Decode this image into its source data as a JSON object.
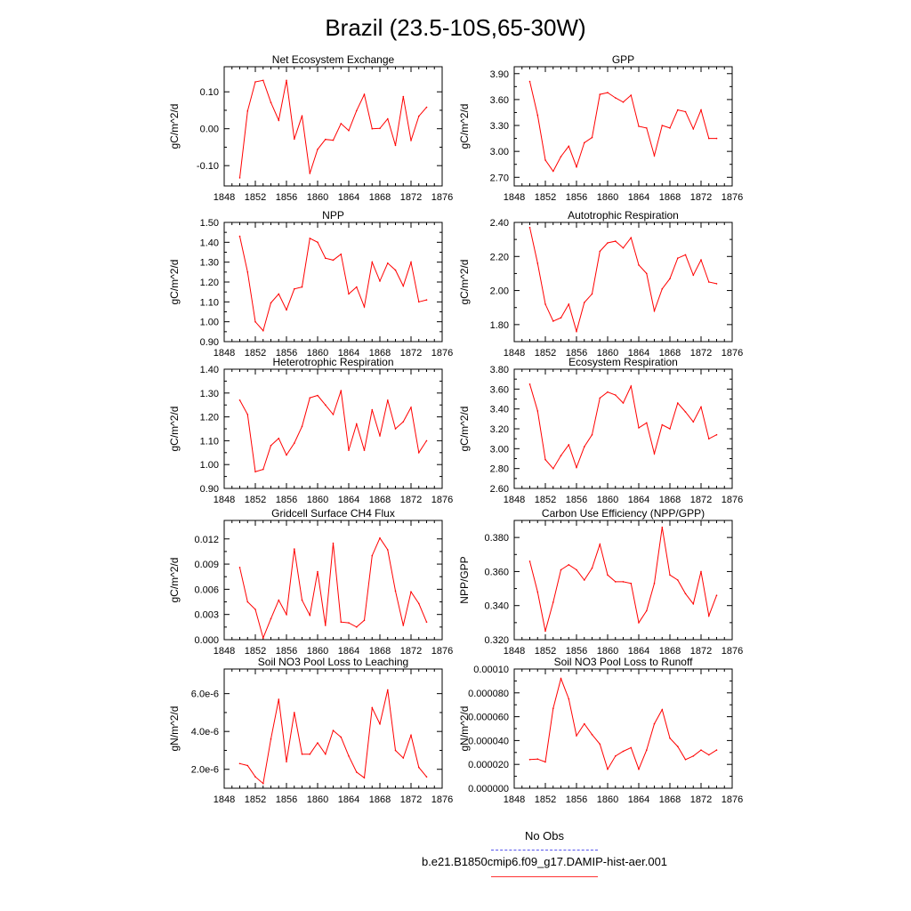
{
  "title": "Brazil (23.5-10S,65-30W)",
  "legend": {
    "obs_label": "No Obs",
    "obs_color": "#5555ee",
    "run_label": "b.e21.B1850cmip6.f09_g17.DAMIP-hist-aer.001",
    "run_color": "#ff0000"
  },
  "chart_data": [
    {
      "type": "line",
      "title": "Net Ecosystem Exchange",
      "ylabel": "gC/m^2/d",
      "xlim": [
        1848,
        1876
      ],
      "xticks": [
        1848,
        1852,
        1856,
        1860,
        1864,
        1868,
        1872,
        1876
      ],
      "xtick_labels": [
        "1848",
        "1852",
        "1856",
        "1860",
        "1864",
        "1868",
        "1872",
        "1876"
      ],
      "ylim": [
        -0.155,
        0.168
      ],
      "yticks": [
        -0.1,
        0.0,
        0.1
      ],
      "ytick_labels": [
        "-0.10",
        "0.00",
        "0.10"
      ],
      "x": [
        1850,
        1851,
        1852,
        1853,
        1854,
        1855,
        1856,
        1857,
        1858,
        1859,
        1860,
        1861,
        1862,
        1863,
        1864,
        1865,
        1866,
        1867,
        1868,
        1869,
        1870,
        1871,
        1872,
        1873,
        1874
      ],
      "series": [
        {
          "values": [
            -0.133,
            0.048,
            0.127,
            0.131,
            0.071,
            0.023,
            0.131,
            -0.028,
            0.035,
            -0.121,
            -0.056,
            -0.029,
            -0.031,
            0.014,
            -0.005,
            0.049,
            0.093,
            0.0,
            0.001,
            0.027,
            -0.045,
            0.087,
            -0.032,
            0.034,
            0.058
          ]
        }
      ]
    },
    {
      "type": "line",
      "title": "GPP",
      "ylabel": "gC/m^2/d",
      "xlim": [
        1848,
        1876
      ],
      "xticks": [
        1848,
        1852,
        1856,
        1860,
        1864,
        1868,
        1872,
        1876
      ],
      "xtick_labels": [
        "1848",
        "1852",
        "1856",
        "1860",
        "1864",
        "1868",
        "1872",
        "1876"
      ],
      "ylim": [
        2.6,
        3.98
      ],
      "yticks": [
        2.7,
        3.0,
        3.3,
        3.6,
        3.9
      ],
      "ytick_labels": [
        "2.70",
        "3.00",
        "3.30",
        "3.60",
        "3.90"
      ],
      "x": [
        1850,
        1851,
        1852,
        1853,
        1854,
        1855,
        1856,
        1857,
        1858,
        1859,
        1860,
        1861,
        1862,
        1863,
        1864,
        1865,
        1866,
        1867,
        1868,
        1869,
        1870,
        1871,
        1872,
        1873,
        1874
      ],
      "series": [
        {
          "values": [
            3.81,
            3.42,
            2.9,
            2.77,
            2.94,
            3.06,
            2.82,
            3.1,
            3.16,
            3.66,
            3.68,
            3.62,
            3.57,
            3.65,
            3.29,
            3.27,
            2.95,
            3.3,
            3.27,
            3.48,
            3.46,
            3.26,
            3.48,
            3.15,
            3.15
          ]
        }
      ]
    },
    {
      "type": "line",
      "title": "NPP",
      "ylabel": "gC/m^2/d",
      "xlim": [
        1848,
        1876
      ],
      "xticks": [
        1848,
        1852,
        1856,
        1860,
        1864,
        1868,
        1872,
        1876
      ],
      "xtick_labels": [
        "1848",
        "1852",
        "1856",
        "1860",
        "1864",
        "1868",
        "1872",
        "1876"
      ],
      "ylim": [
        0.9,
        1.5
      ],
      "yticks": [
        0.9,
        1.0,
        1.1,
        1.2,
        1.3,
        1.4,
        1.5
      ],
      "ytick_labels": [
        "0.90",
        "1.00",
        "1.10",
        "1.20",
        "1.30",
        "1.40",
        "1.50"
      ],
      "x": [
        1850,
        1851,
        1852,
        1853,
        1854,
        1855,
        1856,
        1857,
        1858,
        1859,
        1860,
        1861,
        1862,
        1863,
        1864,
        1865,
        1866,
        1867,
        1868,
        1869,
        1870,
        1871,
        1872,
        1873,
        1874
      ],
      "series": [
        {
          "values": [
            1.43,
            1.25,
            1.0,
            0.955,
            1.095,
            1.14,
            1.06,
            1.165,
            1.175,
            1.42,
            1.4,
            1.32,
            1.31,
            1.34,
            1.14,
            1.175,
            1.075,
            1.3,
            1.205,
            1.295,
            1.26,
            1.18,
            1.3,
            1.1,
            1.11
          ]
        }
      ]
    },
    {
      "type": "line",
      "title": "Autotrophic Respiration",
      "ylabel": "gC/m^2/d",
      "xlim": [
        1848,
        1876
      ],
      "xticks": [
        1848,
        1852,
        1856,
        1860,
        1864,
        1868,
        1872,
        1876
      ],
      "xtick_labels": [
        "1848",
        "1852",
        "1856",
        "1860",
        "1864",
        "1868",
        "1872",
        "1876"
      ],
      "ylim": [
        1.7,
        2.4
      ],
      "yticks": [
        1.8,
        2.0,
        2.2,
        2.4
      ],
      "ytick_labels": [
        "1.80",
        "2.00",
        "2.20",
        "2.40"
      ],
      "x": [
        1850,
        1851,
        1852,
        1853,
        1854,
        1855,
        1856,
        1857,
        1858,
        1859,
        1860,
        1861,
        1862,
        1863,
        1864,
        1865,
        1866,
        1867,
        1868,
        1869,
        1870,
        1871,
        1872,
        1873,
        1874
      ],
      "series": [
        {
          "values": [
            2.37,
            2.16,
            1.92,
            1.82,
            1.84,
            1.92,
            1.76,
            1.93,
            1.98,
            2.23,
            2.28,
            2.29,
            2.25,
            2.31,
            2.15,
            2.1,
            1.88,
            2.01,
            2.07,
            2.19,
            2.21,
            2.09,
            2.18,
            2.05,
            2.04
          ]
        }
      ]
    },
    {
      "type": "line",
      "title": "Heterotrophic Respiration",
      "ylabel": "gC/m^2/d",
      "xlim": [
        1848,
        1876
      ],
      "xticks": [
        1848,
        1852,
        1856,
        1860,
        1864,
        1868,
        1872,
        1876
      ],
      "xtick_labels": [
        "1848",
        "1852",
        "1856",
        "1860",
        "1864",
        "1868",
        "1872",
        "1876"
      ],
      "ylim": [
        0.9,
        1.4
      ],
      "yticks": [
        0.9,
        1.0,
        1.1,
        1.2,
        1.3,
        1.4
      ],
      "ytick_labels": [
        "0.90",
        "1.00",
        "1.10",
        "1.20",
        "1.30",
        "1.40"
      ],
      "x": [
        1850,
        1851,
        1852,
        1853,
        1854,
        1855,
        1856,
        1857,
        1858,
        1859,
        1860,
        1861,
        1862,
        1863,
        1864,
        1865,
        1866,
        1867,
        1868,
        1869,
        1870,
        1871,
        1872,
        1873,
        1874
      ],
      "series": [
        {
          "values": [
            1.27,
            1.21,
            0.97,
            0.98,
            1.08,
            1.11,
            1.04,
            1.09,
            1.16,
            1.28,
            1.29,
            1.25,
            1.21,
            1.31,
            1.06,
            1.17,
            1.06,
            1.23,
            1.12,
            1.27,
            1.15,
            1.18,
            1.24,
            1.05,
            1.1
          ]
        }
      ]
    },
    {
      "type": "line",
      "title": "Ecosystem Respiration",
      "ylabel": "gC/m^2/d",
      "xlim": [
        1848,
        1876
      ],
      "xticks": [
        1848,
        1852,
        1856,
        1860,
        1864,
        1868,
        1872,
        1876
      ],
      "xtick_labels": [
        "1848",
        "1852",
        "1856",
        "1860",
        "1864",
        "1868",
        "1872",
        "1876"
      ],
      "ylim": [
        2.6,
        3.8
      ],
      "yticks": [
        2.6,
        2.8,
        3.0,
        3.2,
        3.4,
        3.6,
        3.8
      ],
      "ytick_labels": [
        "2.60",
        "2.80",
        "3.00",
        "3.20",
        "3.40",
        "3.60",
        "3.80"
      ],
      "x": [
        1850,
        1851,
        1852,
        1853,
        1854,
        1855,
        1856,
        1857,
        1858,
        1859,
        1860,
        1861,
        1862,
        1863,
        1864,
        1865,
        1866,
        1867,
        1868,
        1869,
        1870,
        1871,
        1872,
        1873,
        1874
      ],
      "series": [
        {
          "values": [
            3.65,
            3.38,
            2.89,
            2.8,
            2.93,
            3.04,
            2.81,
            3.02,
            3.14,
            3.51,
            3.57,
            3.54,
            3.46,
            3.63,
            3.21,
            3.26,
            2.95,
            3.24,
            3.2,
            3.46,
            3.37,
            3.27,
            3.42,
            3.1,
            3.14
          ]
        }
      ]
    },
    {
      "type": "line",
      "title": "Gridcell Surface CH4 Flux",
      "ylabel": "gC/m^2/d",
      "xlim": [
        1848,
        1876
      ],
      "xticks": [
        1848,
        1852,
        1856,
        1860,
        1864,
        1868,
        1872,
        1876
      ],
      "xtick_labels": [
        "1848",
        "1852",
        "1856",
        "1860",
        "1864",
        "1868",
        "1872",
        "1876"
      ],
      "ylim": [
        0.0,
        0.0142
      ],
      "yticks": [
        0.0,
        0.003,
        0.006,
        0.009,
        0.012
      ],
      "ytick_labels": [
        "0.000",
        "0.003",
        "0.006",
        "0.009",
        "0.012"
      ],
      "x": [
        1850,
        1851,
        1852,
        1853,
        1854,
        1855,
        1856,
        1857,
        1858,
        1859,
        1860,
        1861,
        1862,
        1863,
        1864,
        1865,
        1866,
        1867,
        1868,
        1869,
        1870,
        1871,
        1872,
        1873,
        1874
      ],
      "series": [
        {
          "values": [
            0.0086,
            0.0045,
            0.0036,
            0.0002,
            0.0025,
            0.0047,
            0.003,
            0.0108,
            0.0047,
            0.0029,
            0.0081,
            0.0017,
            0.0115,
            0.0021,
            0.002,
            0.0015,
            0.0023,
            0.01,
            0.0121,
            0.0107,
            0.0058,
            0.0017,
            0.0057,
            0.0043,
            0.0021
          ]
        }
      ]
    },
    {
      "type": "line",
      "title": "Carbon Use Efficiency (NPP/GPP)",
      "ylabel": "NPP/GPP",
      "xlim": [
        1848,
        1876
      ],
      "xticks": [
        1848,
        1852,
        1856,
        1860,
        1864,
        1868,
        1872,
        1876
      ],
      "xtick_labels": [
        "1848",
        "1852",
        "1856",
        "1860",
        "1864",
        "1868",
        "1872",
        "1876"
      ],
      "ylim": [
        0.32,
        0.39
      ],
      "yticks": [
        0.32,
        0.34,
        0.36,
        0.38
      ],
      "ytick_labels": [
        "0.320",
        "0.340",
        "0.360",
        "0.380"
      ],
      "x": [
        1850,
        1851,
        1852,
        1853,
        1854,
        1855,
        1856,
        1857,
        1858,
        1859,
        1860,
        1861,
        1862,
        1863,
        1864,
        1865,
        1866,
        1867,
        1868,
        1869,
        1870,
        1871,
        1872,
        1873,
        1874
      ],
      "series": [
        {
          "values": [
            0.366,
            0.348,
            0.325,
            0.342,
            0.361,
            0.364,
            0.361,
            0.355,
            0.362,
            0.376,
            0.358,
            0.354,
            0.354,
            0.353,
            0.33,
            0.337,
            0.353,
            0.386,
            0.358,
            0.355,
            0.347,
            0.341,
            0.36,
            0.334,
            0.346
          ]
        }
      ]
    },
    {
      "type": "line",
      "title": "Soil NO3 Pool Loss to Leaching",
      "ylabel": "gN/m^2/d",
      "xlim": [
        1848,
        1876
      ],
      "xticks": [
        1848,
        1852,
        1856,
        1860,
        1864,
        1868,
        1872,
        1876
      ],
      "xtick_labels": [
        "1848",
        "1852",
        "1856",
        "1860",
        "1864",
        "1868",
        "1872",
        "1876"
      ],
      "ylim": [
        1e-06,
        7.3e-06
      ],
      "yticks": [
        2e-06,
        4e-06,
        6e-06
      ],
      "ytick_labels": [
        "2.0e-6",
        "4.0e-6",
        "6.0e-6"
      ],
      "x": [
        1850,
        1851,
        1852,
        1853,
        1854,
        1855,
        1856,
        1857,
        1858,
        1859,
        1860,
        1861,
        1862,
        1863,
        1864,
        1865,
        1866,
        1867,
        1868,
        1869,
        1870,
        1871,
        1872,
        1873,
        1874
      ],
      "series": [
        {
          "values": [
            2.3e-06,
            2.2e-06,
            1.6e-06,
            1.25e-06,
            3.6e-06,
            5.7e-06,
            2.4e-06,
            5e-06,
            2.8e-06,
            2.8e-06,
            3.4e-06,
            2.8e-06,
            4.05e-06,
            3.7e-06,
            2.7e-06,
            1.85e-06,
            1.55e-06,
            5.25e-06,
            4.4e-06,
            6.2e-06,
            3e-06,
            2.6e-06,
            3.8e-06,
            2.1e-06,
            1.6e-06
          ]
        }
      ]
    },
    {
      "type": "line",
      "title": "Soil NO3 Pool Loss to Runoff",
      "ylabel": "gN/m^2/d",
      "xlim": [
        1848,
        1876
      ],
      "xticks": [
        1848,
        1852,
        1856,
        1860,
        1864,
        1868,
        1872,
        1876
      ],
      "xtick_labels": [
        "1848",
        "1852",
        "1856",
        "1860",
        "1864",
        "1868",
        "1872",
        "1876"
      ],
      "ylim": [
        0.0,
        0.0001
      ],
      "yticks": [
        0.0,
        2e-05,
        4e-05,
        6e-05,
        8e-05,
        0.0001
      ],
      "ytick_labels": [
        "0.000000",
        "0.000020",
        "0.000040",
        "0.000060",
        "0.000080",
        "0.00010"
      ],
      "x": [
        1850,
        1851,
        1852,
        1853,
        1854,
        1855,
        1856,
        1857,
        1858,
        1859,
        1860,
        1861,
        1862,
        1863,
        1864,
        1865,
        1866,
        1867,
        1868,
        1869,
        1870,
        1871,
        1872,
        1873,
        1874
      ],
      "series": [
        {
          "values": [
            2.4e-05,
            2.45e-05,
            2.2e-05,
            6.7e-05,
            9.2e-05,
            7.5e-05,
            4.4e-05,
            5.4e-05,
            4.5e-05,
            3.7e-05,
            1.6e-05,
            2.7e-05,
            3.1e-05,
            3.4e-05,
            1.6e-05,
            3.2e-05,
            5.4e-05,
            6.6e-05,
            4.2e-05,
            3.5e-05,
            2.4e-05,
            2.7e-05,
            3.2e-05,
            2.8e-05,
            3.2e-05
          ]
        }
      ]
    }
  ]
}
